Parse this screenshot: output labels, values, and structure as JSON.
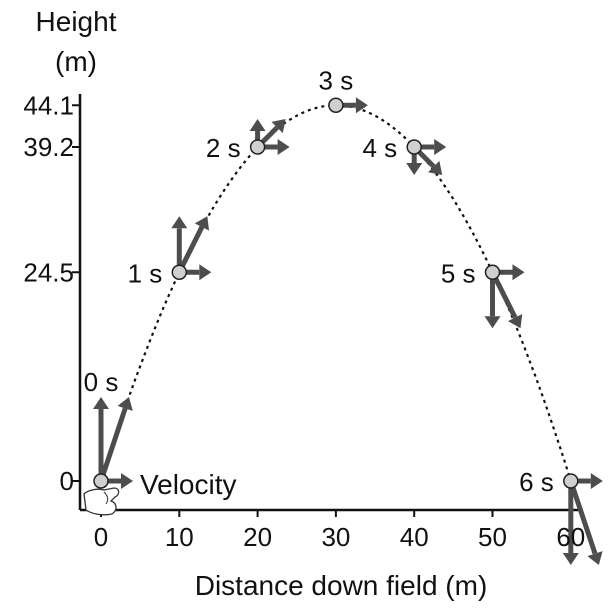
{
  "chart_data": {
    "type": "scatter",
    "y_axis_title": [
      "Height",
      "(m)"
    ],
    "x_axis_title": "Distance down field (m)",
    "x_ticks": [
      "0",
      "10",
      "20",
      "30",
      "40",
      "50",
      "60"
    ],
    "y_ticks": [
      {
        "label": "0",
        "value": 0
      },
      {
        "label": "24.5",
        "value": 24.5
      },
      {
        "label": "39.2",
        "value": 39.2
      },
      {
        "label": "44.1",
        "value": 44.1
      }
    ],
    "xlim": [
      0,
      60
    ],
    "ylim": [
      0,
      44.1
    ],
    "points": [
      {
        "label": "0 s",
        "x": 0,
        "y": 0,
        "vx": 1,
        "vy": 3
      },
      {
        "label": "1 s",
        "x": 10,
        "y": 24.5,
        "vx": 1,
        "vy": 2
      },
      {
        "label": "2 s",
        "x": 20,
        "y": 39.2,
        "vx": 1,
        "vy": 1
      },
      {
        "label": "3 s",
        "x": 30,
        "y": 44.1,
        "vx": 1,
        "vy": 0
      },
      {
        "label": "4 s",
        "x": 40,
        "y": 39.2,
        "vx": 1,
        "vy": -1
      },
      {
        "label": "5 s",
        "x": 50,
        "y": 24.5,
        "vx": 1,
        "vy": -2
      },
      {
        "label": "6 s",
        "x": 60,
        "y": 0,
        "vx": 1,
        "vy": -3
      }
    ],
    "annotation": "Velocity",
    "colors": {
      "arrow": "#4d4d4d",
      "ball": "#cfcfcf",
      "path": "#111111",
      "axis": "#111111"
    }
  }
}
